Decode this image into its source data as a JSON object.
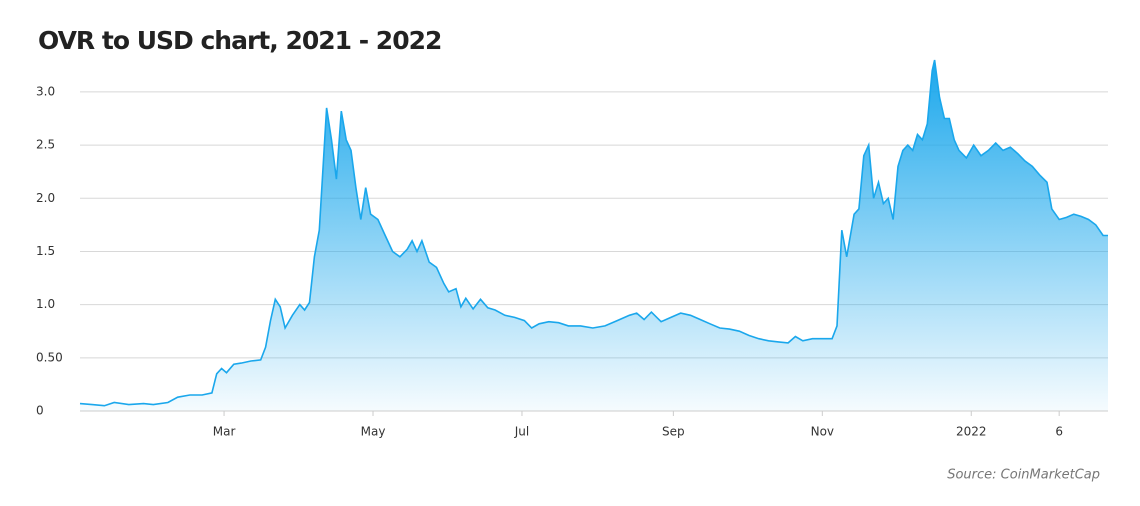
{
  "chart_data": {
    "type": "area",
    "title": "OVR to USD chart, 2021 - 2022",
    "source": "Source: CoinMarketCap",
    "color": "#1aa7ec",
    "grid": true,
    "xlim": [
      0,
      421
    ],
    "ylim": [
      0,
      3.3
    ],
    "yticks": [
      0,
      {
        "value": 0.5,
        "label": "0.50"
      },
      {
        "value": 1,
        "label": "1.0"
      },
      1.5,
      {
        "value": 2,
        "label": "2.0"
      },
      2.5,
      {
        "value": 3,
        "label": "3.0"
      }
    ],
    "xticks": [
      {
        "value": 59,
        "label": "Mar"
      },
      {
        "value": 120,
        "label": "May"
      },
      {
        "value": 181,
        "label": "Jul"
      },
      {
        "value": 243,
        "label": "Sep"
      },
      {
        "value": 304,
        "label": "Nov"
      },
      {
        "value": 365,
        "label": "2022"
      },
      {
        "value": 401,
        "label": "6"
      }
    ],
    "x": [
      0,
      5,
      10,
      14,
      20,
      26,
      30,
      36,
      40,
      45,
      50,
      54,
      56,
      58,
      60,
      63,
      66,
      70,
      74,
      76,
      78,
      80,
      82,
      84,
      87,
      90,
      92,
      94,
      96,
      98,
      101,
      103,
      105,
      107,
      109,
      111,
      113,
      115,
      117,
      119,
      122,
      125,
      128,
      131,
      134,
      136,
      138,
      140,
      143,
      146,
      149,
      151,
      154,
      156,
      158,
      161,
      164,
      167,
      170,
      174,
      178,
      182,
      185,
      188,
      192,
      196,
      200,
      205,
      210,
      215,
      220,
      225,
      228,
      231,
      234,
      238,
      242,
      246,
      250,
      254,
      258,
      262,
      266,
      270,
      274,
      278,
      282,
      286,
      290,
      293,
      296,
      300,
      304,
      308,
      310,
      312,
      314,
      317,
      319,
      321,
      323,
      325,
      327,
      329,
      331,
      333,
      335,
      337,
      339,
      341,
      343,
      345,
      347,
      349,
      350,
      352,
      354,
      356,
      358,
      360,
      363,
      366,
      369,
      372,
      375,
      378,
      381,
      384,
      387,
      390,
      393,
      396,
      398,
      401,
      404,
      407,
      410,
      413,
      416,
      419,
      421
    ],
    "values": [
      0.07,
      0.06,
      0.05,
      0.08,
      0.06,
      0.07,
      0.06,
      0.08,
      0.13,
      0.15,
      0.15,
      0.17,
      0.35,
      0.4,
      0.36,
      0.44,
      0.45,
      0.47,
      0.48,
      0.6,
      0.85,
      1.05,
      0.98,
      0.78,
      0.9,
      1.0,
      0.95,
      1.02,
      1.45,
      1.7,
      2.85,
      2.55,
      2.18,
      2.82,
      2.55,
      2.45,
      2.1,
      1.8,
      2.1,
      1.85,
      1.8,
      1.65,
      1.5,
      1.45,
      1.52,
      1.6,
      1.5,
      1.6,
      1.4,
      1.35,
      1.2,
      1.12,
      1.15,
      0.98,
      1.06,
      0.96,
      1.05,
      0.97,
      0.95,
      0.9,
      0.88,
      0.85,
      0.78,
      0.82,
      0.84,
      0.83,
      0.8,
      0.8,
      0.78,
      0.8,
      0.85,
      0.9,
      0.92,
      0.86,
      0.93,
      0.84,
      0.88,
      0.92,
      0.9,
      0.86,
      0.82,
      0.78,
      0.77,
      0.75,
      0.71,
      0.68,
      0.66,
      0.65,
      0.64,
      0.7,
      0.66,
      0.68,
      0.68,
      0.68,
      0.8,
      1.7,
      1.45,
      1.85,
      1.9,
      2.4,
      2.5,
      2.0,
      2.15,
      1.95,
      2.0,
      1.8,
      2.3,
      2.45,
      2.5,
      2.45,
      2.6,
      2.55,
      2.7,
      3.2,
      3.3,
      2.95,
      2.75,
      2.75,
      2.55,
      2.45,
      2.38,
      2.5,
      2.4,
      2.45,
      2.52,
      2.45,
      2.48,
      2.42,
      2.35,
      2.3,
      2.22,
      2.15,
      1.9,
      1.8,
      1.82,
      1.85,
      1.83,
      1.8,
      1.75,
      1.65,
      1.65
    ]
  }
}
